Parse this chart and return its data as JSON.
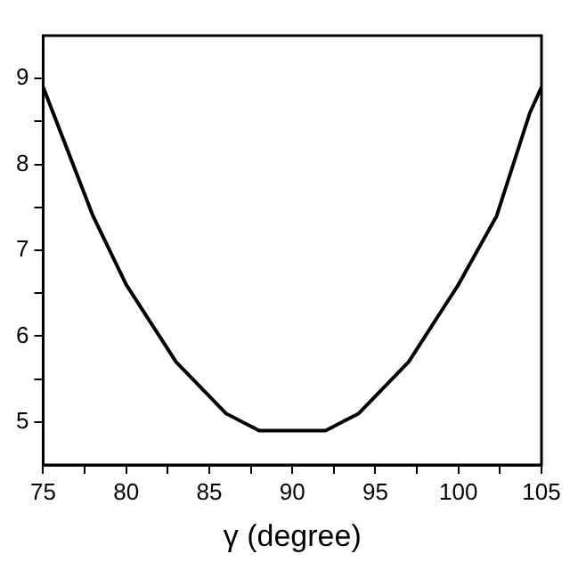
{
  "chart_data": {
    "type": "line",
    "xlabel": "γ (degree)",
    "x": [
      75,
      78,
      80,
      83,
      86,
      88,
      92,
      94,
      97,
      100,
      102.3,
      104.3,
      105
    ],
    "series": [
      {
        "color": "#000000",
        "values": [
          8.9,
          7.4,
          6.6,
          5.7,
          5.1,
          4.9,
          4.9,
          5.1,
          5.7,
          6.6,
          7.4,
          8.6,
          8.9
        ]
      }
    ],
    "xlim": [
      75,
      105
    ],
    "xticks": [
      75,
      {
        "value": 77.5,
        "label": null
      },
      80,
      {
        "value": 82.5,
        "label": null
      },
      85,
      {
        "value": 87.5,
        "label": null
      },
      90,
      {
        "value": 92.5,
        "label": null
      },
      95,
      {
        "value": 97.5,
        "label": null
      },
      100,
      {
        "value": 102.5,
        "label": null
      },
      105
    ],
    "ylim": [
      4.5,
      9.5
    ],
    "yticks": [
      5,
      {
        "value": 5.5,
        "label": null
      },
      6,
      {
        "value": 6.5,
        "label": null
      },
      7,
      {
        "value": 7.5,
        "label": null
      },
      8,
      {
        "value": 8.5,
        "label": null
      },
      9
    ],
    "grid": false,
    "legend": false,
    "marker": "none",
    "line_style": "solid"
  }
}
